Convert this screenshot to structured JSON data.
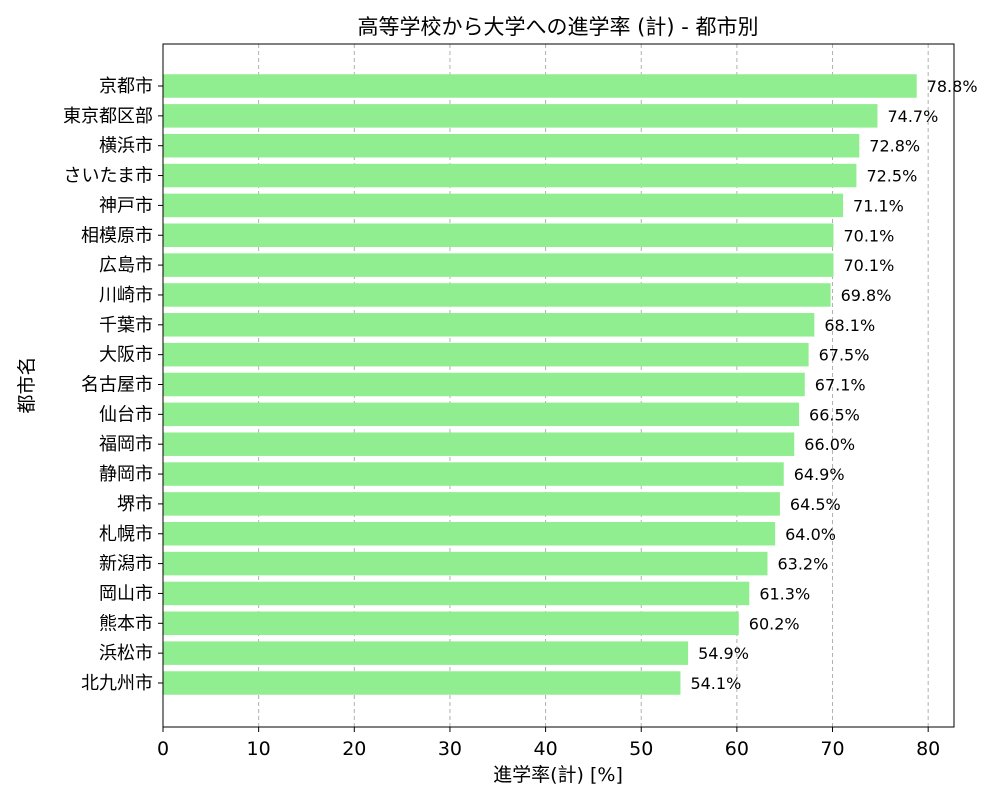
{
  "chart_data": {
    "type": "bar",
    "orientation": "horizontal",
    "title": "高等学校から大学への進学率 (計) - 都市別",
    "xlabel": "進学率(計) [%]",
    "ylabel": "都市名",
    "xlim": [
      0,
      82.7
    ],
    "xticks": [
      0,
      10,
      20,
      30,
      40,
      50,
      60,
      70,
      80
    ],
    "grid": "x-dashed",
    "bar_color": "#90ee90",
    "categories": [
      "京都市",
      "東京都区部",
      "横浜市",
      "さいたま市",
      "神戸市",
      "相模原市",
      "広島市",
      "川崎市",
      "千葉市",
      "大阪市",
      "名古屋市",
      "仙台市",
      "福岡市",
      "静岡市",
      "堺市",
      "札幌市",
      "新潟市",
      "岡山市",
      "熊本市",
      "浜松市",
      "北九州市"
    ],
    "values": [
      78.8,
      74.7,
      72.8,
      72.5,
      71.1,
      70.1,
      70.1,
      69.8,
      68.1,
      67.5,
      67.1,
      66.5,
      66.0,
      64.9,
      64.5,
      64.0,
      63.2,
      61.3,
      60.2,
      54.9,
      54.1
    ],
    "value_labels": [
      "78.8%",
      "74.7%",
      "72.8%",
      "72.5%",
      "71.1%",
      "70.1%",
      "70.1%",
      "69.8%",
      "68.1%",
      "67.5%",
      "67.1%",
      "66.5%",
      "66.0%",
      "64.9%",
      "64.5%",
      "64.0%",
      "63.2%",
      "61.3%",
      "60.2%",
      "54.9%",
      "54.1%"
    ]
  }
}
